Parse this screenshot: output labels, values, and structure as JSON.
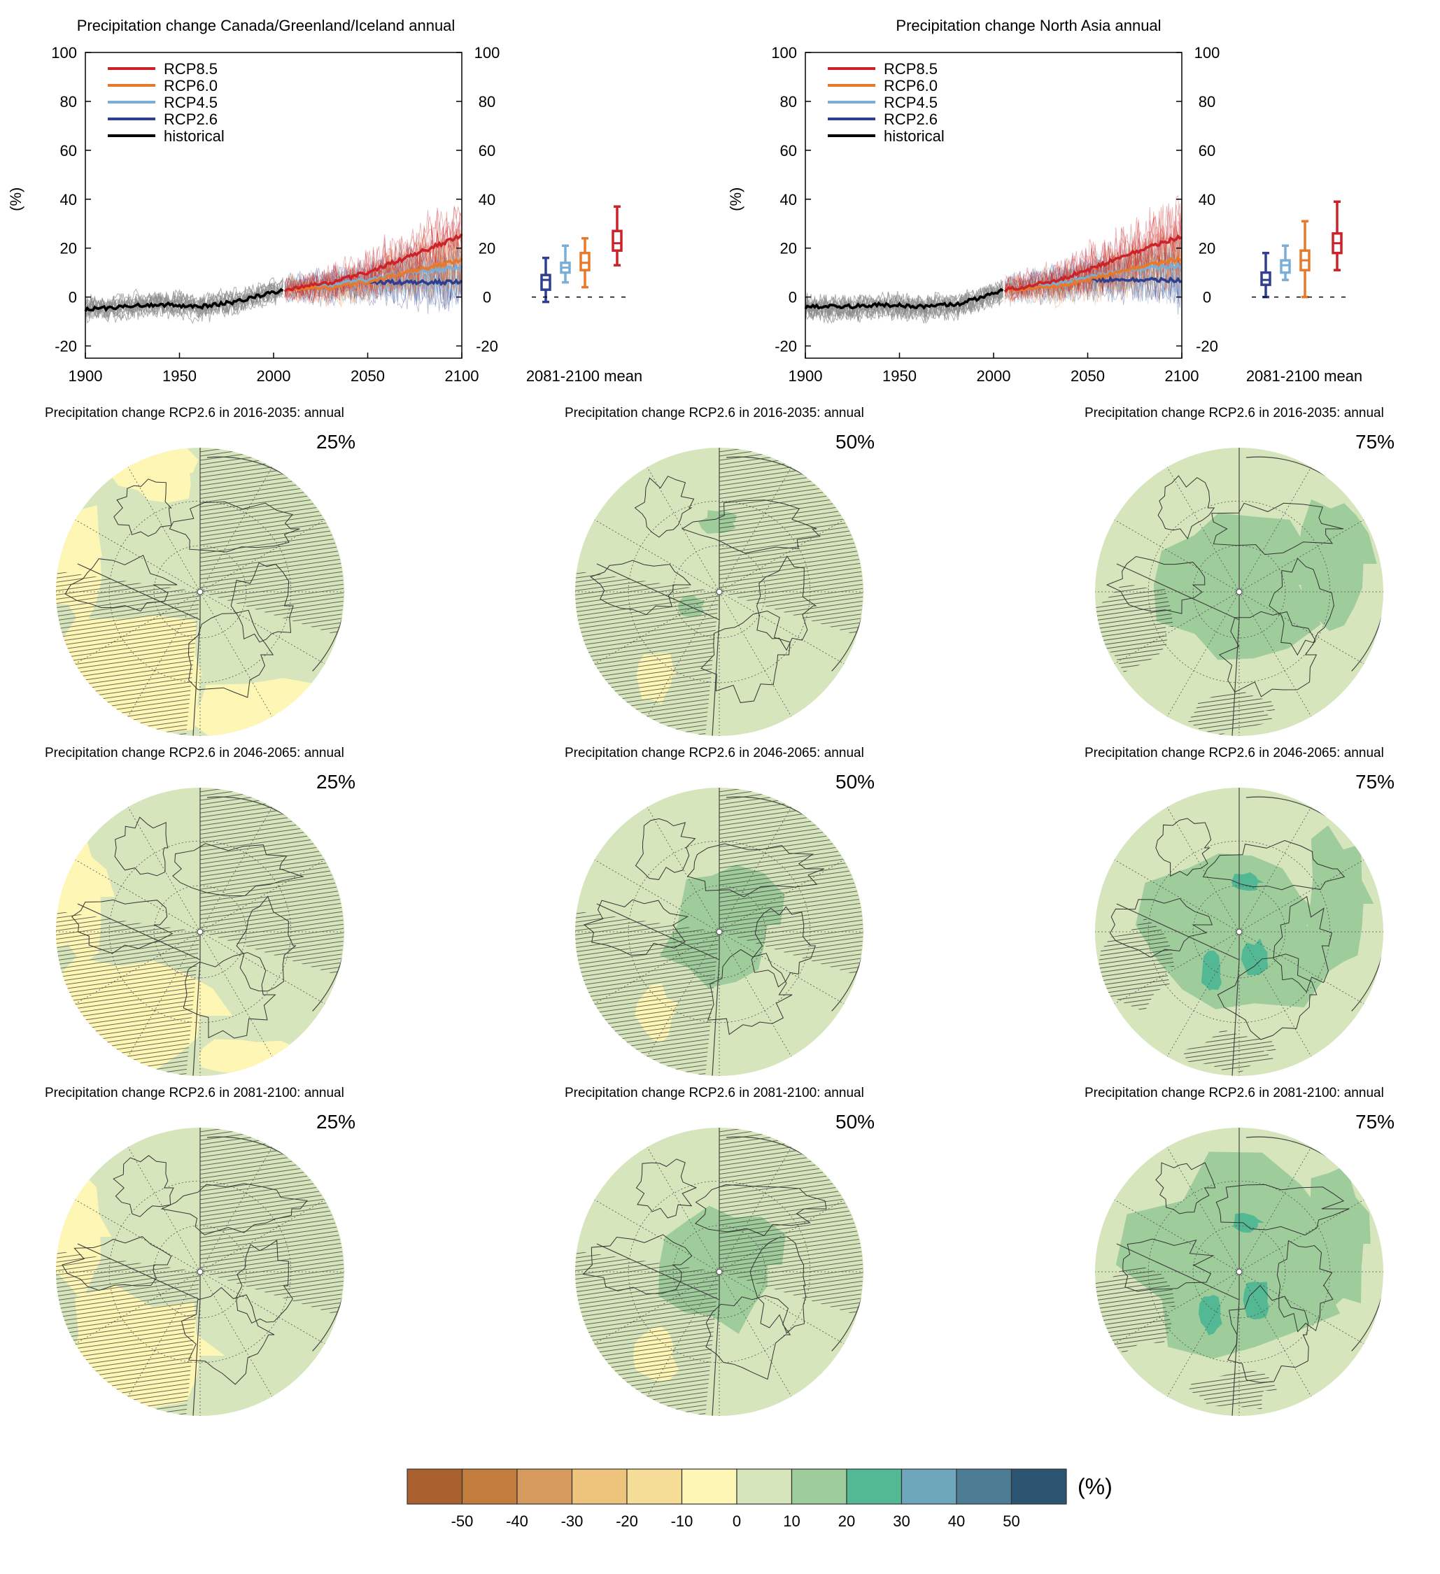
{
  "timeseries_panels": [
    {
      "title": "Precipitation change Canada/Greenland/Iceland annual",
      "ylabel": "(%)",
      "box_label": "2081-2100 mean",
      "x_ticks": [
        "1900",
        "1950",
        "2000",
        "2050",
        "2100"
      ],
      "y_ticks": [
        "-20",
        "0",
        "20",
        "40",
        "60",
        "80",
        "100"
      ]
    },
    {
      "title": "Precipitation change North Asia annual",
      "ylabel": "(%)",
      "box_label": "2081-2100 mean",
      "x_ticks": [
        "1900",
        "1950",
        "2000",
        "2050",
        "2100"
      ],
      "y_ticks": [
        "-20",
        "0",
        "20",
        "40",
        "60",
        "80",
        "100"
      ]
    }
  ],
  "legend": [
    {
      "name": "RCP8.5",
      "color": "#cc2229"
    },
    {
      "name": "RCP6.0",
      "color": "#e8792b"
    },
    {
      "name": "RCP4.5",
      "color": "#7aaed6"
    },
    {
      "name": "RCP2.6",
      "color": "#2e3f8f"
    },
    {
      "name": "historical",
      "color": "#000000"
    }
  ],
  "chart_data": [
    {
      "type": "line",
      "title": "Precipitation change Canada/Greenland/Iceland annual",
      "ylabel": "(%)",
      "xlim": [
        1900,
        2100
      ],
      "ylim": [
        -25,
        100
      ],
      "series": [
        {
          "name": "historical",
          "x": [
            1900,
            1920,
            1940,
            1960,
            1980,
            1990,
            2005
          ],
          "values": [
            -5,
            -4,
            -3,
            -4,
            -2,
            0,
            3
          ]
        },
        {
          "name": "RCP2.6",
          "x": [
            2006,
            2030,
            2050,
            2070,
            2100
          ],
          "values": [
            3,
            5,
            6,
            6,
            6
          ]
        },
        {
          "name": "RCP4.5",
          "x": [
            2006,
            2030,
            2050,
            2070,
            2100
          ],
          "values": [
            3,
            5,
            7,
            10,
            12
          ]
        },
        {
          "name": "RCP6.0",
          "x": [
            2006,
            2030,
            2050,
            2070,
            2100
          ],
          "values": [
            3,
            4,
            6,
            10,
            15
          ]
        },
        {
          "name": "RCP8.5",
          "x": [
            2006,
            2030,
            2050,
            2070,
            2100
          ],
          "values": [
            3,
            6,
            10,
            16,
            25
          ]
        }
      ],
      "boxes_2081_2100": [
        {
          "name": "RCP2.6",
          "min": -2,
          "q1": 3,
          "median": 7,
          "q3": 9,
          "max": 16
        },
        {
          "name": "RCP4.5",
          "min": 6,
          "q1": 10,
          "median": 12,
          "q3": 14,
          "max": 21
        },
        {
          "name": "RCP6.0",
          "min": 4,
          "q1": 11,
          "median": 14,
          "q3": 18,
          "max": 24
        },
        {
          "name": "RCP8.5",
          "min": 13,
          "q1": 19,
          "median": 22,
          "q3": 27,
          "max": 37
        }
      ]
    },
    {
      "type": "line",
      "title": "Precipitation change North Asia annual",
      "ylabel": "(%)",
      "xlim": [
        1900,
        2100
      ],
      "ylim": [
        -25,
        100
      ],
      "series": [
        {
          "name": "historical",
          "x": [
            1900,
            1920,
            1940,
            1960,
            1980,
            1990,
            2005
          ],
          "values": [
            -4,
            -4,
            -3,
            -4,
            -3,
            -1,
            3
          ]
        },
        {
          "name": "RCP2.6",
          "x": [
            2006,
            2030,
            2050,
            2070,
            2100
          ],
          "values": [
            3,
            5,
            7,
            7,
            7
          ]
        },
        {
          "name": "RCP4.5",
          "x": [
            2006,
            2030,
            2050,
            2070,
            2100
          ],
          "values": [
            3,
            5,
            8,
            11,
            13
          ]
        },
        {
          "name": "RCP6.0",
          "x": [
            2006,
            2030,
            2050,
            2070,
            2100
          ],
          "values": [
            3,
            4,
            7,
            11,
            16
          ]
        },
        {
          "name": "RCP8.5",
          "x": [
            2006,
            2030,
            2050,
            2070,
            2100
          ],
          "values": [
            3,
            6,
            11,
            17,
            25
          ]
        }
      ],
      "boxes_2081_2100": [
        {
          "name": "RCP2.6",
          "min": 0,
          "q1": 5,
          "median": 7,
          "q3": 10,
          "max": 18
        },
        {
          "name": "RCP4.5",
          "min": 7,
          "q1": 10,
          "median": 13,
          "q3": 15,
          "max": 21
        },
        {
          "name": "RCP6.0",
          "min": 0,
          "q1": 11,
          "median": 15,
          "q3": 19,
          "max": 31
        },
        {
          "name": "RCP8.5",
          "min": 11,
          "q1": 18,
          "median": 22,
          "q3": 26,
          "max": 39
        }
      ]
    },
    {
      "type": "heatmap",
      "colorbar_unit": "(%)",
      "colorbar_ticks": [
        "-50",
        "-40",
        "-30",
        "-20",
        "-10",
        "0",
        "10",
        "20",
        "30",
        "40",
        "50"
      ],
      "colorbar_colors": [
        "#a9622f",
        "#c27c3c",
        "#d69a5e",
        "#eec47c",
        "#f5dd98",
        "#fef6b5",
        "#d6e5bc",
        "#9fcc9b",
        "#53b894",
        "#6ea6bb",
        "#4c7d95",
        "#2b5470"
      ]
    }
  ],
  "map_panels": [
    {
      "title": "Precipitation change RCP2.6 in 2016-2035: annual",
      "percentile": "25%"
    },
    {
      "title": "Precipitation change RCP2.6 in 2016-2035: annual",
      "percentile": "50%"
    },
    {
      "title": "Precipitation change RCP2.6 in 2016-2035: annual",
      "percentile": "75%"
    },
    {
      "title": "Precipitation change RCP2.6 in 2046-2065: annual",
      "percentile": "25%"
    },
    {
      "title": "Precipitation change RCP2.6 in 2046-2065: annual",
      "percentile": "50%"
    },
    {
      "title": "Precipitation change RCP2.6 in 2046-2065: annual",
      "percentile": "75%"
    },
    {
      "title": "Precipitation change RCP2.6 in 2081-2100: annual",
      "percentile": "25%"
    },
    {
      "title": "Precipitation change RCP2.6 in 2081-2100: annual",
      "percentile": "50%"
    },
    {
      "title": "Precipitation change RCP2.6 in 2081-2100: annual",
      "percentile": "75%"
    }
  ]
}
